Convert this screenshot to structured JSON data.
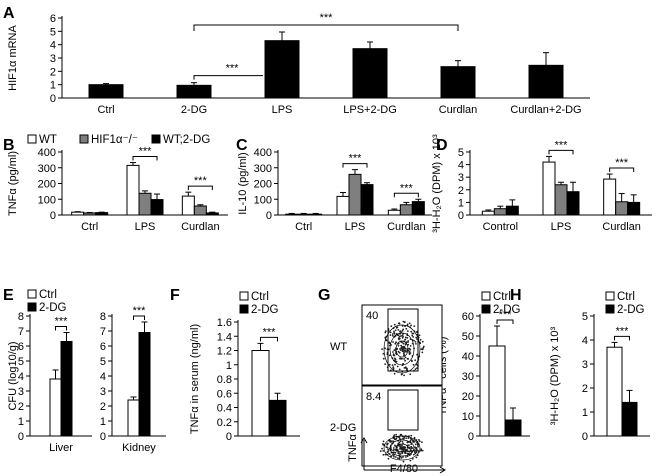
{
  "panel_labels": [
    "A",
    "B",
    "C",
    "D",
    "E",
    "F",
    "G",
    "H"
  ],
  "colors": {
    "white": "#ffffff",
    "gray": "#7f7f7f",
    "black": "#000000",
    "stroke": "#000000"
  },
  "legends": {
    "B": [
      "WT",
      "HIF1α⁻/⁻",
      "WT;2-DG"
    ],
    "E": [
      "Ctrl",
      "2-DG"
    ],
    "F": [
      "Ctrl",
      "2-DG"
    ],
    "G": [
      "Ctrl",
      "2-DG"
    ],
    "H": [
      "Ctrl",
      "2-DG"
    ]
  },
  "significance": "***",
  "flow": {
    "rows": [
      "WT",
      "2-DG"
    ],
    "gate_values": [
      "40",
      "8.4"
    ],
    "ylabel": "TNFα",
    "xlabel": "F4/80"
  },
  "chart_data": [
    {
      "id": "A",
      "type": "bar",
      "ylabel": "HIF1α mRNA",
      "ylim": [
        0,
        6
      ],
      "yticks": [
        0,
        1,
        2,
        3,
        4,
        5,
        6
      ],
      "categories": [
        "Ctrl",
        "2-DG",
        "LPS",
        "LPS+2-DG",
        "Curdlan",
        "Curdlan+2-DG"
      ],
      "series": [
        {
          "color": "black",
          "values": [
            1.0,
            0.95,
            4.3,
            3.7,
            2.35,
            2.45
          ],
          "errors": [
            0.08,
            0.2,
            0.65,
            0.5,
            0.45,
            0.95
          ]
        }
      ],
      "significance": [
        {
          "from": 1,
          "to": 2,
          "label": "***"
        },
        {
          "from": 1,
          "to": 4,
          "label": "***"
        }
      ]
    },
    {
      "id": "B",
      "type": "bar",
      "ylabel": "TNFα (pg/ml)",
      "ylim": [
        0,
        400
      ],
      "yticks": [
        0,
        100,
        200,
        300,
        400
      ],
      "categories": [
        "Ctrl",
        "LPS",
        "Curdlan"
      ],
      "series": [
        {
          "name": "WT",
          "color": "white",
          "values": [
            18,
            315,
            120
          ],
          "errors": [
            3,
            18,
            25
          ]
        },
        {
          "name": "HIF1α⁻/⁻",
          "color": "gray",
          "values": [
            13,
            138,
            57
          ],
          "errors": [
            3,
            15,
            8
          ]
        },
        {
          "name": "WT;2-DG",
          "color": "black",
          "values": [
            15,
            98,
            13
          ],
          "errors": [
            3,
            35,
            5
          ]
        }
      ],
      "significance": [
        {
          "category": 1,
          "from_series": 0,
          "to_series": 2,
          "label": "***"
        },
        {
          "category": 2,
          "from_series": 0,
          "to_series": 2,
          "label": "***"
        }
      ]
    },
    {
      "id": "C",
      "type": "bar",
      "ylabel": "IL-10 (pg/ml)",
      "ylim": [
        0,
        400
      ],
      "yticks": [
        0,
        100,
        200,
        300,
        400
      ],
      "categories": [
        "Ctrl",
        "LPS",
        "Curdlan"
      ],
      "series": [
        {
          "name": "WT",
          "color": "white",
          "values": [
            5,
            118,
            30
          ],
          "errors": [
            5,
            25,
            8
          ]
        },
        {
          "name": "HIF1α⁻/⁻",
          "color": "gray",
          "values": [
            5,
            258,
            65
          ],
          "errors": [
            5,
            30,
            15
          ]
        },
        {
          "name": "WT;2-DG",
          "color": "black",
          "values": [
            5,
            193,
            85
          ],
          "errors": [
            5,
            12,
            15
          ]
        }
      ],
      "significance": [
        {
          "category": 1,
          "from_series": 0,
          "to_series": 2,
          "label": "***"
        },
        {
          "category": 2,
          "from_series": 0,
          "to_series": 2,
          "label": "***"
        }
      ]
    },
    {
      "id": "D",
      "type": "bar",
      "ylabel": "³H-H₂O (DPM) x 10³",
      "ylim": [
        0,
        5
      ],
      "yticks": [
        0,
        1,
        2,
        3,
        4,
        5
      ],
      "categories": [
        "Control",
        "LPS",
        "Curdlan"
      ],
      "series": [
        {
          "name": "WT",
          "color": "white",
          "values": [
            0.3,
            4.2,
            2.85
          ],
          "errors": [
            0.1,
            0.45,
            0.4
          ]
        },
        {
          "name": "HIF1α⁻/⁻",
          "color": "gray",
          "values": [
            0.5,
            2.4,
            1.05
          ],
          "errors": [
            0.2,
            0.2,
            0.65
          ]
        },
        {
          "name": "WT;2-DG",
          "color": "black",
          "values": [
            0.7,
            1.85,
            1.0
          ],
          "errors": [
            0.5,
            0.75,
            0.6
          ]
        }
      ],
      "significance": [
        {
          "category": 1,
          "from_series": 0,
          "to_series": 2,
          "label": "***"
        },
        {
          "category": 2,
          "from_series": 0,
          "to_series": 2,
          "label": "***"
        }
      ]
    },
    {
      "id": "E1",
      "type": "bar",
      "ylabel": "CFU (log10/g)",
      "ylim": [
        0,
        8
      ],
      "yticks": [
        0,
        1,
        2,
        3,
        4,
        5,
        6,
        7,
        8
      ],
      "categories": [
        "Liver"
      ],
      "series": [
        {
          "name": "Ctrl",
          "color": "white",
          "values": [
            3.8
          ],
          "errors": [
            0.6
          ]
        },
        {
          "name": "2-DG",
          "color": "black",
          "values": [
            6.3
          ],
          "errors": [
            0.6
          ]
        }
      ],
      "significance": [
        {
          "category": 0,
          "from_series": 0,
          "to_series": 1,
          "label": "***"
        }
      ]
    },
    {
      "id": "E2",
      "type": "bar",
      "ylim": [
        0,
        8
      ],
      "yticks": [
        0,
        1,
        2,
        3,
        4,
        5,
        6,
        7,
        8
      ],
      "categories": [
        "Kidney"
      ],
      "series": [
        {
          "name": "Ctrl",
          "color": "white",
          "values": [
            2.4
          ],
          "errors": [
            0.2
          ]
        },
        {
          "name": "2-DG",
          "color": "black",
          "values": [
            6.9
          ],
          "errors": [
            0.7
          ]
        }
      ],
      "significance": [
        {
          "category": 0,
          "from_series": 0,
          "to_series": 1,
          "label": "***"
        }
      ]
    },
    {
      "id": "F",
      "type": "bar",
      "ylabel": "TNFα in serum (ng/ml)",
      "ylim": [
        0,
        1.6
      ],
      "yticks": [
        "0",
        "0.2",
        "0.4",
        "0.6",
        "0.8",
        "1",
        "1.2",
        "1.4",
        "1.6"
      ],
      "categories": [
        ""
      ],
      "series": [
        {
          "name": "Ctrl",
          "color": "white",
          "values": [
            1.2
          ],
          "errors": [
            0.1
          ]
        },
        {
          "name": "2-DG",
          "color": "black",
          "values": [
            0.5
          ],
          "errors": [
            0.1
          ]
        }
      ],
      "significance": [
        {
          "category": 0,
          "from_series": 0,
          "to_series": 1,
          "label": "***"
        }
      ]
    },
    {
      "id": "G",
      "type": "bar",
      "ylabel": "TNFα⁺ cells (%)",
      "ylim": [
        0,
        60
      ],
      "yticks": [
        0,
        10,
        20,
        30,
        40,
        50,
        60
      ],
      "categories": [
        ""
      ],
      "series": [
        {
          "name": "Ctrl",
          "color": "white",
          "values": [
            45
          ],
          "errors": [
            10
          ]
        },
        {
          "name": "2-DG",
          "color": "black",
          "values": [
            8
          ],
          "errors": [
            6
          ]
        }
      ],
      "significance": [
        {
          "category": 0,
          "from_series": 0,
          "to_series": 1,
          "label": "***"
        }
      ]
    },
    {
      "id": "H",
      "type": "bar",
      "ylabel": "³H-H₂O (DPM) x 10³",
      "ylim": [
        0,
        5
      ],
      "yticks": [
        0,
        1,
        2,
        3,
        4,
        5
      ],
      "categories": [
        ""
      ],
      "series": [
        {
          "name": "Ctrl",
          "color": "white",
          "values": [
            3.7
          ],
          "errors": [
            0.2
          ]
        },
        {
          "name": "2-DG",
          "color": "black",
          "values": [
            1.4
          ],
          "errors": [
            0.5
          ]
        }
      ],
      "significance": [
        {
          "category": 0,
          "from_series": 0,
          "to_series": 1,
          "label": "***"
        }
      ]
    }
  ]
}
